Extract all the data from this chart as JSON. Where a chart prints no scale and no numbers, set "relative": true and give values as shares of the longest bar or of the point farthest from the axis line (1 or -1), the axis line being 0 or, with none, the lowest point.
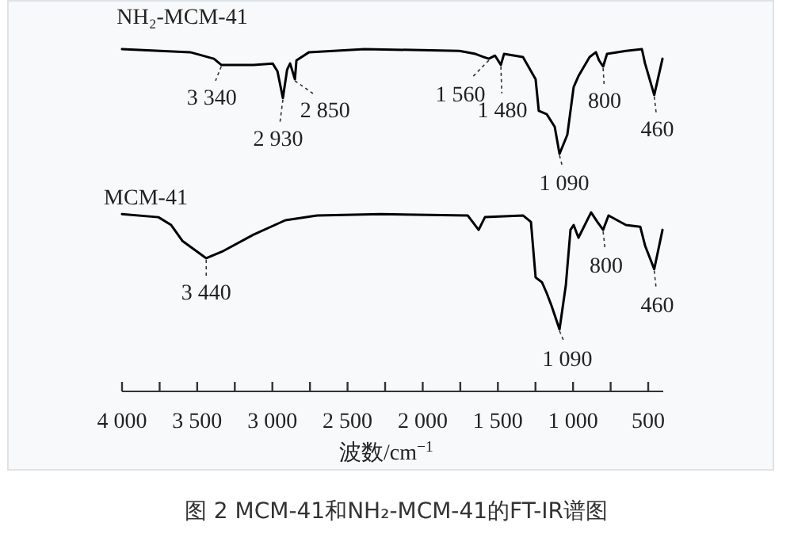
{
  "chart_data": {
    "type": "line",
    "relative": true,
    "title": "图 2  MCM-41和NH₂-MCM-41的FT-IR谱图",
    "xlabel": "波数/cm$^{−1}$",
    "xlim": [
      4000,
      400
    ],
    "xticks": [
      {
        "value": 4000,
        "label": "4 000"
      },
      {
        "value": 3750,
        "label": null
      },
      {
        "value": 3500,
        "label": "3 500"
      },
      {
        "value": 3250,
        "label": null
      },
      {
        "value": 3000,
        "label": "3 000"
      },
      {
        "value": 2750,
        "label": null
      },
      {
        "value": 2500,
        "label": "2 500"
      },
      {
        "value": 2250,
        "label": null
      },
      {
        "value": 2000,
        "label": "2 000"
      },
      {
        "value": 1750,
        "label": null
      },
      {
        "value": 1500,
        "label": "1 500"
      },
      {
        "value": 1250,
        "label": null
      },
      {
        "value": 1000,
        "label": "1 000"
      },
      {
        "value": 750,
        "label": null
      },
      500
    ],
    "series": [
      {
        "name": "NH₂-MCM-41",
        "color": "#000000",
        "x": [
          4000,
          3547,
          3389,
          3340,
          3125,
          2998,
          2966,
          2930,
          2902,
          2882,
          2850,
          2840,
          2756,
          2387,
          1755,
          1649,
          1596,
          1560,
          1519,
          1480,
          1459,
          1333,
          1249,
          1228,
          1175,
          1122,
          1090,
          1038,
          996,
          964,
          890,
          848,
          827,
          800,
          774,
          648,
          542,
          521,
          460,
          405
        ],
        "values": [
          1.0,
          0.991,
          0.972,
          0.954,
          0.954,
          0.958,
          0.935,
          0.857,
          0.94,
          0.958,
          0.912,
          0.967,
          0.991,
          1.0,
          0.995,
          0.986,
          0.977,
          0.972,
          0.981,
          0.954,
          0.986,
          0.977,
          0.912,
          0.82,
          0.81,
          0.773,
          0.694,
          0.75,
          0.889,
          0.921,
          0.977,
          0.991,
          0.967,
          0.949,
          0.986,
          0.995,
          1.0,
          0.958,
          0.866,
          0.972
        ]
      },
      {
        "name": "MCM-41",
        "color": "#000000",
        "x": [
          4000,
          3758,
          3673,
          3599,
          3440,
          3336,
          3125,
          2914,
          2703,
          2280,
          1701,
          1628,
          1586,
          1333,
          1280,
          1249,
          1207,
          1175,
          1143,
          1090,
          1048,
          1017,
          996,
          964,
          880,
          838,
          800,
          764,
          648,
          553,
          521,
          460,
          405
        ],
        "values": [
          0.518,
          0.509,
          0.486,
          0.44,
          0.389,
          0.408,
          0.458,
          0.5,
          0.514,
          0.518,
          0.514,
          0.472,
          0.509,
          0.514,
          0.495,
          0.333,
          0.319,
          0.287,
          0.25,
          0.181,
          0.31,
          0.472,
          0.486,
          0.449,
          0.523,
          0.495,
          0.472,
          0.514,
          0.486,
          0.481,
          0.426,
          0.357,
          0.472
        ]
      }
    ],
    "annotations": [
      {
        "text": "3 340",
        "x": 3340,
        "y": 0.954
      },
      {
        "text": "2 930",
        "x": 2930,
        "y": 0.857
      },
      {
        "text": "2 850",
        "x": 2850,
        "y": 0.912
      },
      {
        "text": "1 560",
        "x": 1560,
        "y": 0.972
      },
      {
        "text": "1 480",
        "x": 1480,
        "y": 0.954
      },
      {
        "text": "1 090",
        "x": 1090,
        "y": 0.694
      },
      {
        "text": "800",
        "x": 800,
        "y": 0.949
      },
      {
        "text": "460",
        "x": 460,
        "y": 0.866
      },
      {
        "text": "3 440",
        "x": 3440,
        "y": 0.389
      },
      {
        "text": "1 090",
        "x": 1090,
        "y": 0.181
      },
      {
        "text": "800",
        "x": 800,
        "y": 0.472
      },
      {
        "text": "460",
        "x": 460,
        "y": 0.357
      }
    ]
  }
}
